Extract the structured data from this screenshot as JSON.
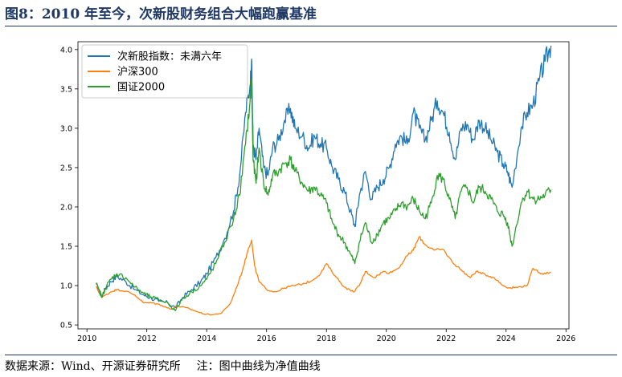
{
  "figure": {
    "title": "图8：2010 年至今，次新股财务组合大幅跑赢基准",
    "source": "数据来源：Wind、开源证券研究所",
    "note": "注：图中曲线为净值曲线"
  },
  "colors": {
    "series_0": "#1f77b4",
    "series_1": "#ff7f0e",
    "series_2": "#2ca02c",
    "rule": "#1f3864"
  },
  "chart_data": {
    "type": "line",
    "title": "",
    "xlabel": "",
    "ylabel": "",
    "xlim": [
      2009.7,
      2026.1
    ],
    "ylim": [
      0.45,
      4.1
    ],
    "xticks": [
      2010,
      2012,
      2014,
      2016,
      2018,
      2020,
      2022,
      2024,
      2026
    ],
    "yticks": [
      0.5,
      1.0,
      1.5,
      2.0,
      2.5,
      3.0,
      3.5,
      4.0
    ],
    "xtick_labels": [
      "2010",
      "2012",
      "2014",
      "2016",
      "2018",
      "2020",
      "2022",
      "2024",
      "2026"
    ],
    "ytick_labels": [
      "0.5",
      "1.0",
      "1.5",
      "2.0",
      "2.5",
      "3.0",
      "3.5",
      "4.0"
    ],
    "grid": false,
    "legend_position": "top-left",
    "series": [
      {
        "name": "次新股指数：未满六年",
        "x": [
          2010.3,
          2010.5,
          2010.6,
          2010.8,
          2011.0,
          2011.3,
          2011.6,
          2011.9,
          2012.1,
          2012.4,
          2012.7,
          2012.95,
          2013.2,
          2013.5,
          2013.8,
          2014.0,
          2014.3,
          2014.6,
          2014.9,
          2015.1,
          2015.3,
          2015.45,
          2015.5,
          2015.55,
          2015.65,
          2015.75,
          2015.9,
          2016.05,
          2016.2,
          2016.4,
          2016.6,
          2016.8,
          2016.95,
          2017.2,
          2017.4,
          2017.6,
          2017.8,
          2018.0,
          2018.2,
          2018.4,
          2018.6,
          2018.8,
          2018.95,
          2019.1,
          2019.3,
          2019.5,
          2019.7,
          2019.9,
          2020.1,
          2020.3,
          2020.5,
          2020.7,
          2020.9,
          2021.1,
          2021.3,
          2021.5,
          2021.7,
          2021.9,
          2022.1,
          2022.3,
          2022.5,
          2022.7,
          2022.9,
          2023.1,
          2023.3,
          2023.5,
          2023.7,
          2023.9,
          2024.05,
          2024.2,
          2024.5,
          2024.7,
          2024.9,
          2025.1,
          2025.3,
          2025.5
        ],
        "values": [
          1.02,
          0.86,
          0.95,
          1.05,
          1.12,
          1.05,
          0.95,
          0.88,
          0.85,
          0.8,
          0.78,
          0.72,
          0.85,
          0.95,
          1.05,
          1.15,
          1.35,
          1.6,
          1.95,
          2.4,
          3.2,
          3.55,
          3.88,
          2.8,
          2.6,
          3.0,
          2.5,
          2.4,
          2.75,
          2.85,
          3.1,
          3.25,
          3.0,
          2.9,
          2.75,
          2.9,
          2.8,
          2.75,
          2.5,
          2.35,
          2.2,
          1.95,
          1.75,
          2.15,
          2.45,
          2.1,
          2.25,
          2.35,
          2.5,
          2.8,
          2.9,
          2.8,
          3.2,
          3.0,
          2.85,
          3.1,
          3.35,
          3.2,
          2.95,
          2.6,
          3.0,
          3.05,
          2.85,
          3.1,
          3.0,
          2.85,
          2.7,
          2.55,
          2.45,
          2.25,
          3.0,
          3.2,
          3.3,
          3.6,
          3.85,
          4.05
        ]
      },
      {
        "name": "沪深300",
        "x": [
          2010.3,
          2010.5,
          2010.8,
          2011.0,
          2011.3,
          2011.6,
          2011.9,
          2012.2,
          2012.5,
          2012.8,
          2013.0,
          2013.3,
          2013.6,
          2013.9,
          2014.2,
          2014.5,
          2014.8,
          2015.0,
          2015.2,
          2015.4,
          2015.5,
          2015.6,
          2015.75,
          2016.0,
          2016.3,
          2016.6,
          2016.9,
          2017.2,
          2017.5,
          2017.8,
          2018.0,
          2018.3,
          2018.6,
          2018.9,
          2019.1,
          2019.3,
          2019.6,
          2019.9,
          2020.1,
          2020.4,
          2020.7,
          2020.9,
          2021.1,
          2021.3,
          2021.6,
          2021.9,
          2022.2,
          2022.5,
          2022.8,
          2023.0,
          2023.3,
          2023.6,
          2023.9,
          2024.1,
          2024.4,
          2024.7,
          2024.9,
          2025.2,
          2025.5
        ],
        "values": [
          0.99,
          0.85,
          0.92,
          0.95,
          0.93,
          0.88,
          0.78,
          0.78,
          0.75,
          0.7,
          0.74,
          0.72,
          0.68,
          0.64,
          0.63,
          0.65,
          0.78,
          0.98,
          1.2,
          1.48,
          1.58,
          1.25,
          1.05,
          0.95,
          0.92,
          0.97,
          1.0,
          1.02,
          1.06,
          1.15,
          1.28,
          1.12,
          0.98,
          0.92,
          1.0,
          1.18,
          1.1,
          1.18,
          1.16,
          1.22,
          1.38,
          1.45,
          1.62,
          1.52,
          1.45,
          1.46,
          1.3,
          1.2,
          1.1,
          1.18,
          1.14,
          1.1,
          1.0,
          0.97,
          0.98,
          1.0,
          1.22,
          1.15,
          1.17
        ]
      },
      {
        "name": "国证2000",
        "x": [
          2010.3,
          2010.5,
          2010.6,
          2010.8,
          2011.0,
          2011.3,
          2011.6,
          2011.9,
          2012.1,
          2012.4,
          2012.7,
          2012.95,
          2013.2,
          2013.5,
          2013.8,
          2014.0,
          2014.3,
          2014.6,
          2014.9,
          2015.1,
          2015.3,
          2015.45,
          2015.5,
          2015.55,
          2015.65,
          2015.75,
          2015.9,
          2016.05,
          2016.2,
          2016.4,
          2016.6,
          2016.8,
          2016.95,
          2017.2,
          2017.4,
          2017.6,
          2017.8,
          2018.0,
          2018.2,
          2018.4,
          2018.6,
          2018.8,
          2018.95,
          2019.1,
          2019.3,
          2019.5,
          2019.7,
          2019.9,
          2020.1,
          2020.3,
          2020.5,
          2020.7,
          2020.9,
          2021.1,
          2021.3,
          2021.5,
          2021.7,
          2021.9,
          2022.1,
          2022.3,
          2022.5,
          2022.7,
          2022.9,
          2023.1,
          2023.3,
          2023.5,
          2023.7,
          2023.9,
          2024.05,
          2024.2,
          2024.5,
          2024.7,
          2024.9,
          2025.1,
          2025.3,
          2025.5
        ],
        "values": [
          1.03,
          0.85,
          0.96,
          1.08,
          1.15,
          1.1,
          0.98,
          0.9,
          0.86,
          0.82,
          0.78,
          0.68,
          0.84,
          0.92,
          1.0,
          1.08,
          1.28,
          1.55,
          1.85,
          2.15,
          2.8,
          3.35,
          3.6,
          2.6,
          2.3,
          2.75,
          2.3,
          2.15,
          2.4,
          2.45,
          2.55,
          2.6,
          2.45,
          2.3,
          2.2,
          2.25,
          2.15,
          2.05,
          1.8,
          1.65,
          1.55,
          1.4,
          1.28,
          1.55,
          1.8,
          1.55,
          1.65,
          1.8,
          1.85,
          1.95,
          2.05,
          2.0,
          2.1,
          1.95,
          1.85,
          2.05,
          2.4,
          2.35,
          2.1,
          1.85,
          2.2,
          2.25,
          2.05,
          2.25,
          2.2,
          2.1,
          1.95,
          1.9,
          1.8,
          1.5,
          2.05,
          2.2,
          2.1,
          2.1,
          2.15,
          2.22
        ]
      }
    ]
  }
}
